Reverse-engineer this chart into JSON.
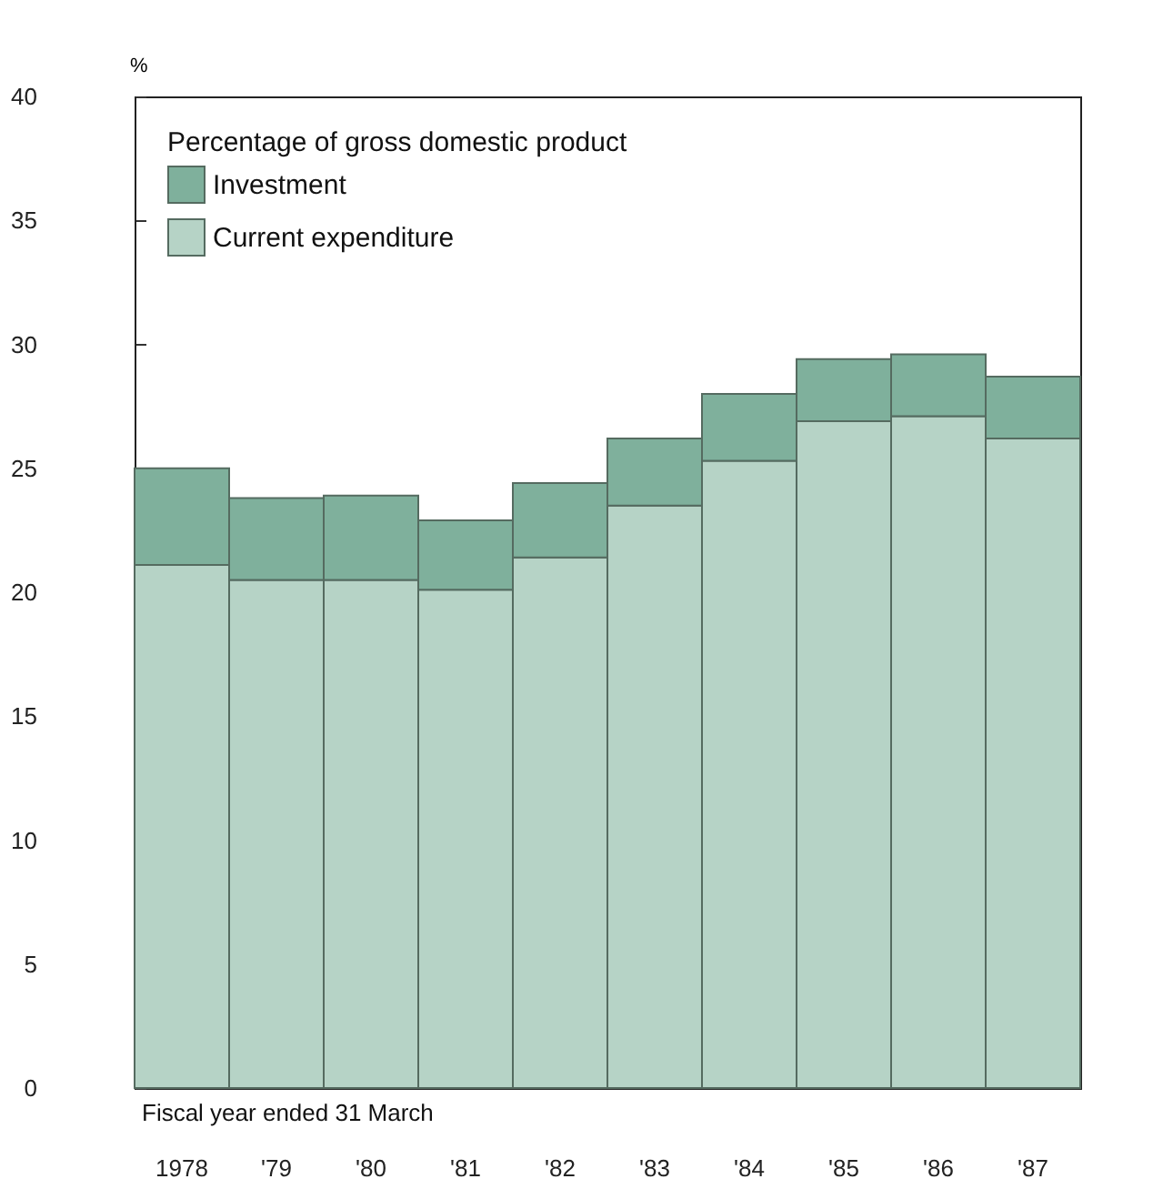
{
  "chart_data": {
    "type": "bar",
    "stacked": true,
    "ylabel": "%",
    "legend_title": "Percentage of gross domestic product",
    "legend": "top left",
    "annotations": [
      "Fiscal year ended 31 March"
    ],
    "categories": [
      "1978",
      "'79",
      "'80",
      "'81",
      "'82",
      "'83",
      "'84",
      "'85",
      "'86",
      "'87"
    ],
    "series": [
      {
        "name": "Current expenditure",
        "color": "#b6d3c6",
        "values": [
          21.1,
          20.5,
          20.5,
          20.1,
          21.4,
          23.5,
          25.3,
          26.9,
          27.1,
          26.2
        ]
      },
      {
        "name": "Investment",
        "color": "#7fb09c",
        "values": [
          3.9,
          3.3,
          3.4,
          2.8,
          3.0,
          2.7,
          2.7,
          2.5,
          2.5,
          2.5
        ]
      }
    ],
    "ylim": [
      0,
      40
    ],
    "yticks": [
      0,
      5,
      10,
      15,
      20,
      25,
      30,
      35,
      40
    ],
    "grid": false
  }
}
